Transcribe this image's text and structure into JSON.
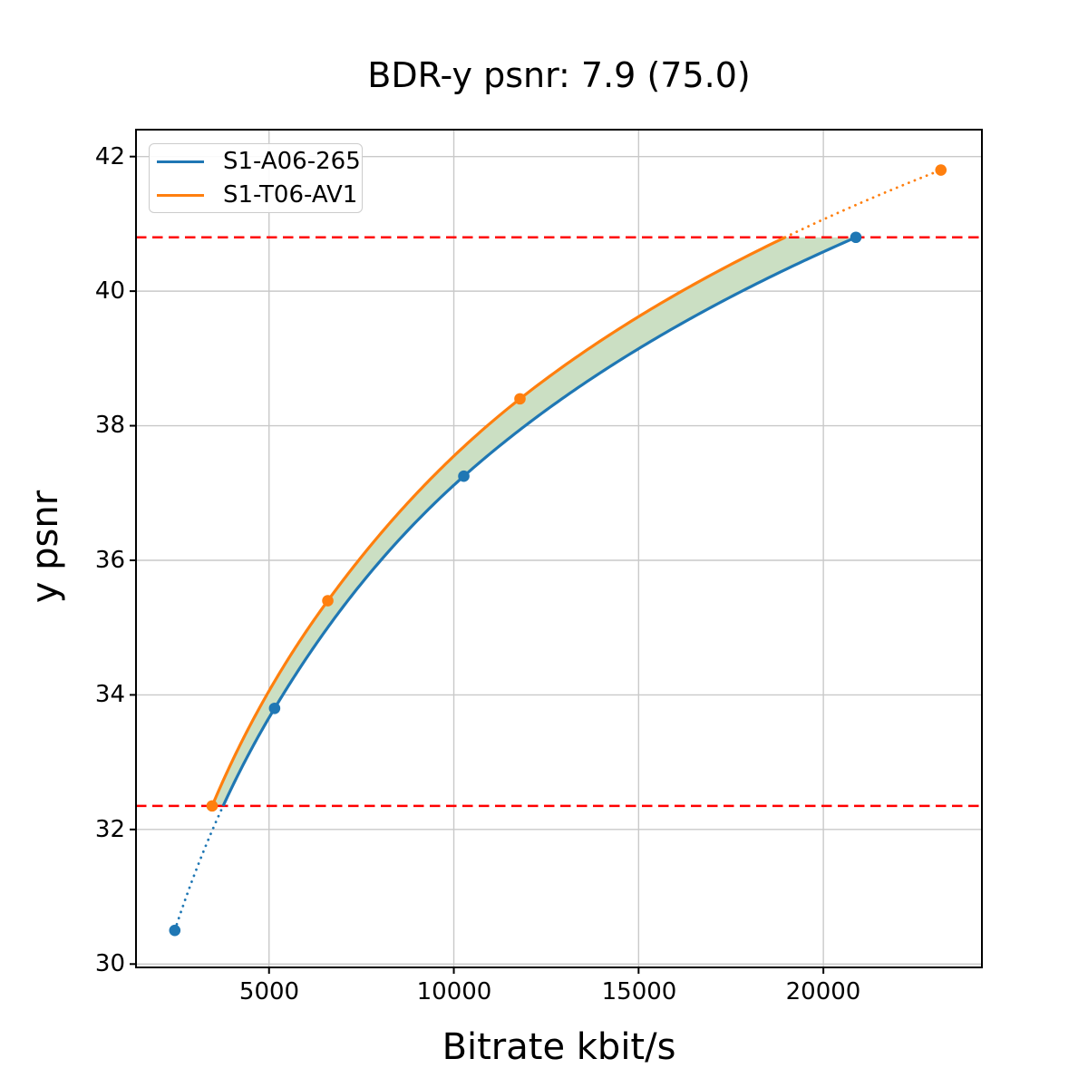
{
  "chart_data": {
    "type": "line",
    "title": "BDR-y psnr: 7.9 (75.0)",
    "xlabel": "Bitrate kbit/s",
    "ylabel": "y psnr",
    "xlim": [
      1400,
      24290
    ],
    "ylim": [
      29.95,
      42.4
    ],
    "xticks": [
      5000,
      10000,
      15000,
      20000
    ],
    "xtick_labels": [
      "5000",
      "10000",
      "15000",
      "20000"
    ],
    "yticks": [
      30,
      32,
      34,
      36,
      38,
      40,
      42
    ],
    "ytick_labels": [
      "30",
      "32",
      "34",
      "36",
      "38",
      "40",
      "42"
    ],
    "grid": true,
    "grid_color": "#c9c9c9",
    "legend_position": "upper left",
    "interpolation": "pchip-on-log-bitrate",
    "series": [
      {
        "name": "S1-A06-265",
        "color": "#1f77b4",
        "marker": "circle",
        "points": [
          [
            2450,
            30.5
          ],
          [
            5150,
            33.8
          ],
          [
            10270,
            37.25
          ],
          [
            20880,
            40.8
          ]
        ]
      },
      {
        "name": "S1-T06-AV1",
        "color": "#ff7f0e",
        "marker": "circle",
        "points": [
          [
            3460,
            32.35
          ],
          [
            6590,
            35.4
          ],
          [
            11790,
            38.4
          ],
          [
            23180,
            41.8
          ]
        ]
      }
    ],
    "overlap_lines": {
      "color": "#ff0000",
      "style": "dashed",
      "y_values": [
        32.35,
        40.8
      ]
    },
    "fill_between": {
      "color": "#cbdfc3"
    }
  }
}
